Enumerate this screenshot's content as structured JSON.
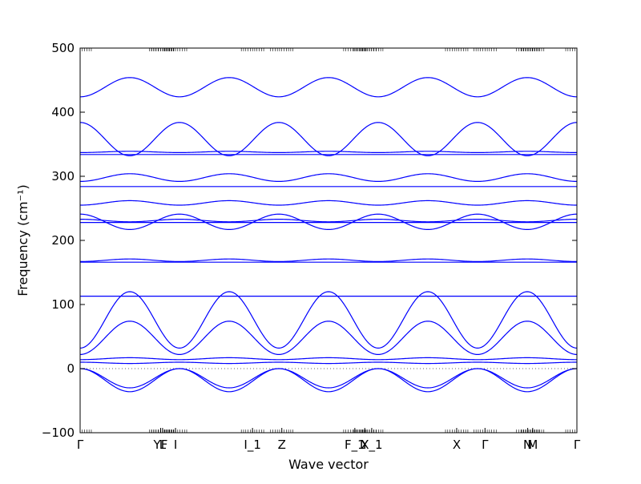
{
  "chart_data": {
    "type": "line",
    "title": "",
    "xlabel": "Wave vector",
    "ylabel": "Frequency (cm⁻¹)",
    "ylim": [
      -100,
      500
    ],
    "yticks": [
      -100,
      0,
      100,
      200,
      300,
      400,
      500
    ],
    "xlim": [
      0,
      1
    ],
    "grid": false,
    "line_color": "#0000ff",
    "zero_line": {
      "y": 0,
      "style": "dotted",
      "color": "#333333"
    },
    "high_symmetry_points": [
      {
        "label": "Γ",
        "x": 0.0
      },
      {
        "label": "YF",
        "x": 0.162
      },
      {
        "label": "L",
        "x": 0.166
      },
      {
        "label": "I",
        "x": 0.192
      },
      {
        "label": "I_1",
        "x": 0.347
      },
      {
        "label": "Z",
        "x": 0.406
      },
      {
        "label": "F_1",
        "x": 0.553
      },
      {
        "label": "Y",
        "x": 0.573
      },
      {
        "label": "X_1",
        "x": 0.587
      },
      {
        "label": "X",
        "x": 0.758
      },
      {
        "label": "Γ",
        "x": 0.815
      },
      {
        "label": "N",
        "x": 0.901
      },
      {
        "label": "M",
        "x": 0.911
      },
      {
        "label": "Γ",
        "x": 1.0
      }
    ],
    "series": [
      {
        "type": "periodic",
        "base": 424,
        "amp": 30
      },
      {
        "type": "periodic",
        "base": 384,
        "amp": -52
      },
      {
        "type": "periodic",
        "base": 337,
        "amp": 2
      },
      {
        "type": "periodic",
        "base": 334,
        "amp": 0
      },
      {
        "type": "periodic",
        "base": 292,
        "amp": 12
      },
      {
        "type": "flat",
        "value": 284
      },
      {
        "type": "periodic",
        "base": 255,
        "amp": 7
      },
      {
        "type": "periodic",
        "base": 241,
        "amp": -24
      },
      {
        "type": "periodic",
        "base": 233,
        "amp": -4
      },
      {
        "type": "flat",
        "value": 228
      },
      {
        "type": "periodic",
        "base": 167,
        "amp": 4
      },
      {
        "type": "flat",
        "value": 166
      },
      {
        "type": "flat",
        "value": 113
      },
      {
        "type": "periodic",
        "base": 32,
        "amp": 88
      },
      {
        "type": "periodic",
        "base": 22,
        "amp": 52
      },
      {
        "type": "periodic",
        "base": 14,
        "amp": 3
      },
      {
        "type": "periodic",
        "base": 10,
        "amp": -2
      },
      {
        "type": "acoustic",
        "amp": -30
      },
      {
        "type": "acoustic",
        "amp": -36
      }
    ]
  }
}
